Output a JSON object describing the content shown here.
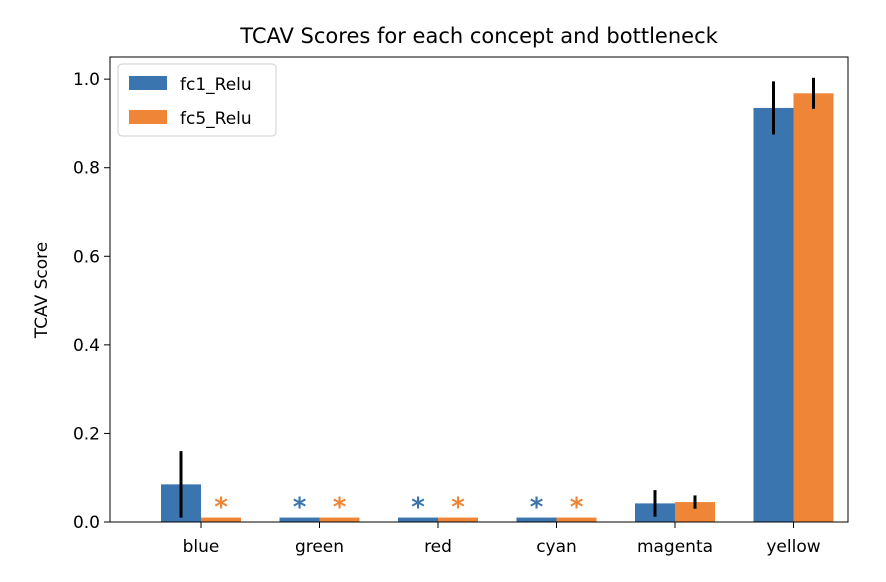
{
  "chart_data": {
    "type": "bar",
    "title": "TCAV Scores for each concept and bottleneck",
    "xlabel": "",
    "ylabel": "TCAV Score",
    "ylim": [
      0,
      1.05
    ],
    "yticks": [
      "0.0",
      "0.2",
      "0.4",
      "0.6",
      "0.8",
      "1.0"
    ],
    "categories": [
      "blue",
      "green",
      "red",
      "cyan",
      "magenta",
      "yellow"
    ],
    "series": [
      {
        "name": "fc1_Relu",
        "color": "#3a75b0",
        "values": [
          0.085,
          0.01,
          0.01,
          0.01,
          0.042,
          0.935
        ],
        "errors": [
          0.075,
          null,
          null,
          null,
          0.03,
          0.06
        ],
        "markers": [
          "",
          "*",
          "*",
          "*",
          "",
          ""
        ]
      },
      {
        "name": "fc5_Relu",
        "color": "#ef8536",
        "values": [
          0.01,
          0.01,
          0.01,
          0.01,
          0.045,
          0.968
        ],
        "errors": [
          null,
          null,
          null,
          null,
          0.015,
          0.035
        ],
        "markers": [
          "*",
          "*",
          "*",
          "*",
          "",
          ""
        ]
      }
    ],
    "grid": false,
    "legend": "top-left"
  }
}
